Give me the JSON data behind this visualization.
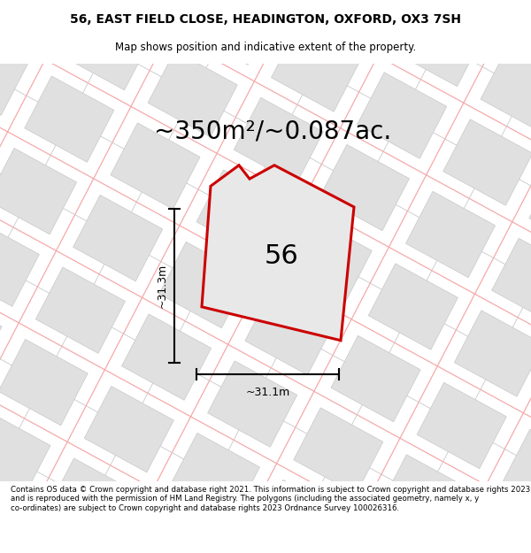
{
  "title_line1": "56, EAST FIELD CLOSE, HEADINGTON, OXFORD, OX3 7SH",
  "title_line2": "Map shows position and indicative extent of the property.",
  "area_text": "~350m²/~0.087ac.",
  "label_56": "56",
  "dim_vertical": "~31.3m",
  "dim_horizontal": "~31.1m",
  "footer_text": "Contains OS data © Crown copyright and database right 2021. This information is subject to Crown copyright and database rights 2023 and is reproduced with the permission of HM Land Registry. The polygons (including the associated geometry, namely x, y co-ordinates) are subject to Crown copyright and database rights 2023 Ordnance Survey 100026316.",
  "map_bg": "#ffffff",
  "plot_fill": "#e8e8e8",
  "plot_edge": "#cc0000",
  "block_fill": "#e0e0e0",
  "block_edge": "#c0c0c0",
  "street_line_color": "#f5aaaa",
  "title_fontsize": 10,
  "subtitle_fontsize": 8.5,
  "area_fontsize": 20,
  "label_fontsize": 22,
  "dim_fontsize": 9,
  "footer_fontsize": 6.2
}
